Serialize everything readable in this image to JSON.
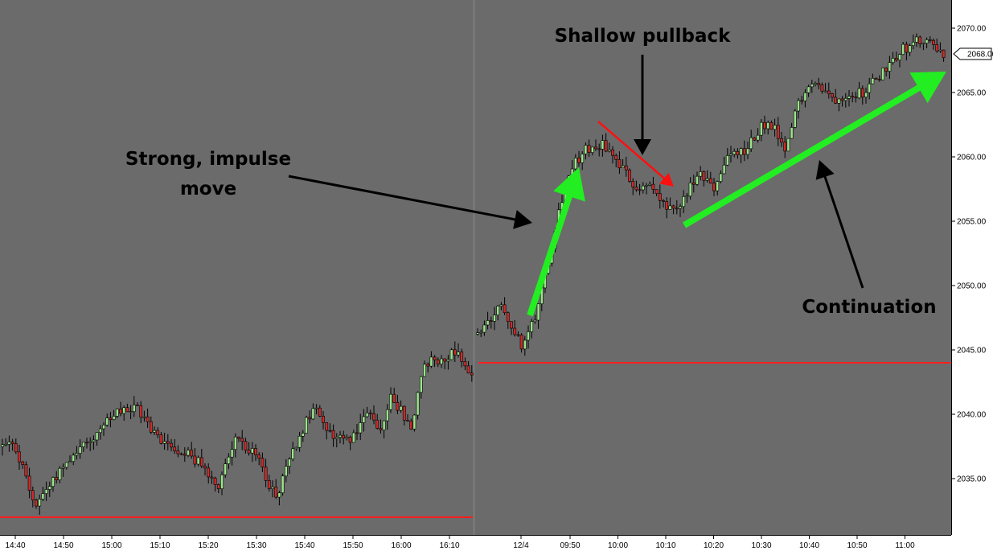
{
  "annotations": {
    "impulse_line1": "Strong, impulse",
    "impulse_line2": "move",
    "pullback": "Shallow pullback",
    "continuation": "Continuation"
  },
  "price_tag": "2068.00",
  "colors": {
    "plot_bg": "#6b6b6b",
    "axis_bg": "#ffffff",
    "up_candle": "#9be58b",
    "down_candle": "#cc2b2b",
    "wick": "#000000",
    "support_line": "#ff1f1f",
    "green_arrow": "#22ee22",
    "red_arrow": "#ff1010",
    "black_arrow": "#000000"
  },
  "chart_data": {
    "type": "candlestick",
    "title": "",
    "xlabel": "",
    "ylabel": "",
    "ylim": [
      2030.0,
      2071.5
    ],
    "y_ticks": [
      "2035.00",
      "2040.00",
      "2045.00",
      "2050.00",
      "2055.00",
      "2060.00",
      "2065.00",
      "2070.00"
    ],
    "x_ticks": [
      "14:40",
      "14:50",
      "15:00",
      "15:10",
      "15:20",
      "15:30",
      "15:40",
      "15:50",
      "16:00",
      "16:10",
      "12/4",
      "09:50",
      "10:00",
      "10:10",
      "10:20",
      "10:30",
      "10:40",
      "10:50",
      "11:00"
    ],
    "session_break_after_tick": "16:10",
    "last_price": 2068.0,
    "support_levels": [
      {
        "session": "previous",
        "value": 2032.0
      },
      {
        "session": "current",
        "value": 2044.0
      }
    ],
    "price_path": {
      "previous_session": [
        [
          "14:40",
          2037.5
        ],
        [
          "14:44",
          2033.0
        ],
        [
          "14:47",
          2034.5
        ],
        [
          "14:52",
          2037.0
        ],
        [
          "14:57",
          2038.5
        ],
        [
          "15:01",
          2040.0
        ],
        [
          "15:05",
          2040.5
        ],
        [
          "15:10",
          2038.0
        ],
        [
          "15:16",
          2037.0
        ],
        [
          "15:22",
          2034.5
        ],
        [
          "15:26",
          2038.5
        ],
        [
          "15:31",
          2036.0
        ],
        [
          "15:34",
          2033.5
        ],
        [
          "15:39",
          2038.5
        ],
        [
          "15:42",
          2040.5
        ],
        [
          "15:45",
          2038.5
        ],
        [
          "15:49",
          2038.0
        ],
        [
          "15:53",
          2040.0
        ],
        [
          "15:56",
          2039.0
        ],
        [
          "15:58",
          2041.5
        ],
        [
          "16:02",
          2039.0
        ],
        [
          "16:05",
          2044.0
        ],
        [
          "16:09",
          2044.5
        ],
        [
          "16:12",
          2045.0
        ],
        [
          "16:14",
          2043.0
        ]
      ],
      "current_session": [
        [
          "open",
          2046.0
        ],
        [
          "09:36",
          2048.5
        ],
        [
          "09:40",
          2045.0
        ],
        [
          "09:43",
          2048.0
        ],
        [
          "09:46",
          2053.0
        ],
        [
          "09:48",
          2056.5
        ],
        [
          "09:50",
          2059.0
        ],
        [
          "09:53",
          2060.5
        ],
        [
          "09:57",
          2061.0
        ],
        [
          "10:00",
          2059.5
        ],
        [
          "10:04",
          2057.5
        ],
        [
          "10:06",
          2058.0
        ],
        [
          "10:10",
          2056.0
        ],
        [
          "10:12",
          2055.5
        ],
        [
          "10:14",
          2057.0
        ],
        [
          "10:17",
          2058.5
        ],
        [
          "10:20",
          2057.5
        ],
        [
          "10:23",
          2060.0
        ],
        [
          "10:27",
          2060.5
        ],
        [
          "10:30",
          2062.5
        ],
        [
          "10:33",
          2062.0
        ],
        [
          "10:35",
          2060.0
        ],
        [
          "10:37",
          2063.5
        ],
        [
          "10:40",
          2066.0
        ],
        [
          "10:42",
          2065.5
        ],
        [
          "10:45",
          2064.5
        ],
        [
          "10:48",
          2065.0
        ],
        [
          "10:51",
          2065.0
        ],
        [
          "10:54",
          2066.0
        ],
        [
          "10:57",
          2067.5
        ],
        [
          "11:00",
          2068.5
        ],
        [
          "11:03",
          2069.0
        ],
        [
          "11:06",
          2068.5
        ],
        [
          "11:08",
          2068.0
        ]
      ]
    }
  }
}
